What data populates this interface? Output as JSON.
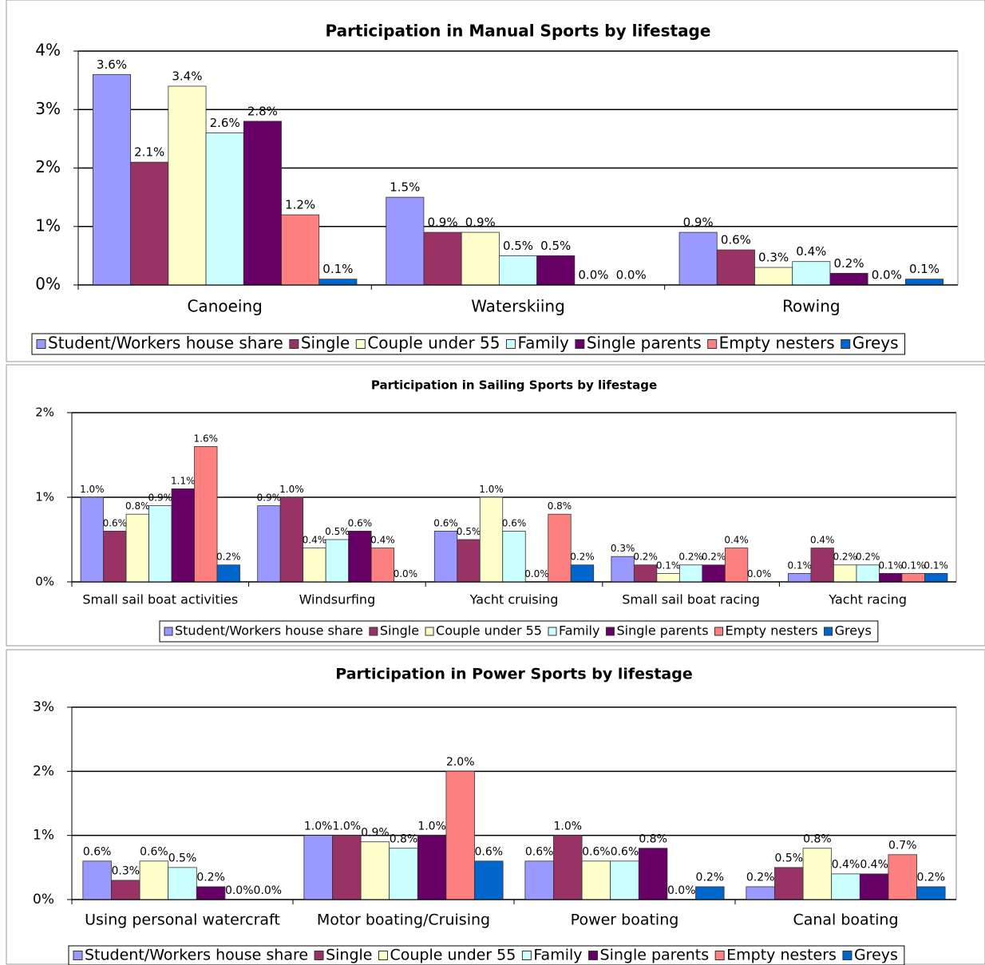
{
  "chart_data": [
    {
      "type": "bar",
      "title": "Participation in Manual Sports by lifestage",
      "categories": [
        "Canoeing",
        "Waterskiing",
        "Rowing"
      ],
      "ylim": [
        0,
        4
      ],
      "yticks": [
        {
          "value": 0,
          "label": "0%"
        },
        {
          "value": 1,
          "label": "1%"
        },
        {
          "value": 2,
          "label": "2%"
        },
        {
          "value": 3,
          "label": "3%"
        },
        {
          "value": 4,
          "label": "4%"
        }
      ],
      "grid": true,
      "legend": "bottom",
      "series": [
        {
          "name": "Student/Workers house share",
          "color": "#9999ff",
          "values": [
            3.6,
            1.5,
            0.9
          ],
          "value_labels": [
            "3.6%",
            "1.5%",
            "0.9%"
          ]
        },
        {
          "name": "Single",
          "color": "#993366",
          "values": [
            2.1,
            0.9,
            0.6
          ],
          "value_labels": [
            "2.1%",
            "0.9%",
            "0.6%"
          ]
        },
        {
          "name": "Couple under 55",
          "color": "#ffffcc",
          "values": [
            3.4,
            0.9,
            0.3
          ],
          "value_labels": [
            "3.4%",
            "0.9%",
            "0.3%"
          ]
        },
        {
          "name": "Family",
          "color": "#ccffff",
          "values": [
            2.6,
            0.5,
            0.4
          ],
          "value_labels": [
            "2.6%",
            "0.5%",
            "0.4%"
          ]
        },
        {
          "name": "Single parents",
          "color": "#660066",
          "values": [
            2.8,
            0.5,
            0.2
          ],
          "value_labels": [
            "2.8%",
            "0.5%",
            "0.2%"
          ]
        },
        {
          "name": "Empty nesters",
          "color": "#ff8080",
          "values": [
            1.2,
            0.0,
            0.0
          ],
          "value_labels": [
            "1.2%",
            "0.0%",
            "0.0%"
          ]
        },
        {
          "name": "Greys",
          "color": "#0066cc",
          "values": [
            0.1,
            0.0,
            0.1
          ],
          "value_labels": [
            "0.1%",
            "0.0%",
            "0.1%"
          ]
        }
      ]
    },
    {
      "type": "bar",
      "title": "Participation in Sailing Sports by lifestage",
      "categories": [
        "Small sail boat activities",
        "Windsurfing",
        "Yacht cruising",
        "Small sail boat racing",
        "Yacht racing"
      ],
      "ylim": [
        0,
        2
      ],
      "yticks": [
        {
          "value": 0,
          "label": "0%"
        },
        {
          "value": 1,
          "label": "1%"
        },
        {
          "value": 2,
          "label": "2%"
        }
      ],
      "grid": true,
      "legend": "bottom",
      "series": [
        {
          "name": "Student/Workers house share",
          "color": "#9999ff",
          "values": [
            1.0,
            0.9,
            0.6,
            0.3,
            0.1
          ],
          "value_labels": [
            "1.0%",
            "0.9%",
            "0.6%",
            "0.3%",
            "0.1%"
          ]
        },
        {
          "name": "Single",
          "color": "#993366",
          "values": [
            0.6,
            1.0,
            0.5,
            0.2,
            0.4
          ],
          "value_labels": [
            "0.6%",
            "1.0%",
            "0.5%",
            "0.2%",
            "0.4%"
          ]
        },
        {
          "name": "Couple under 55",
          "color": "#ffffcc",
          "values": [
            0.8,
            0.4,
            1.0,
            0.1,
            0.2
          ],
          "value_labels": [
            "0.8%",
            "0.4%",
            "1.0%",
            "0.1%",
            "0.2%"
          ]
        },
        {
          "name": "Family",
          "color": "#ccffff",
          "values": [
            0.9,
            0.5,
            0.6,
            0.2,
            0.2
          ],
          "value_labels": [
            "0.9%",
            "0.5%",
            "0.6%",
            "0.2%",
            "0.2%"
          ]
        },
        {
          "name": "Single parents",
          "color": "#660066",
          "values": [
            1.1,
            0.6,
            0.0,
            0.2,
            0.1
          ],
          "value_labels": [
            "1.1%",
            "0.6%",
            "0.0%",
            "0.2%",
            "0.1%"
          ]
        },
        {
          "name": "Empty nesters",
          "color": "#ff8080",
          "values": [
            1.6,
            0.4,
            0.8,
            0.4,
            0.1
          ],
          "value_labels": [
            "1.6%",
            "0.4%",
            "0.8%",
            "0.4%",
            "0.1%"
          ]
        },
        {
          "name": "Greys",
          "color": "#0066cc",
          "values": [
            0.2,
            0.0,
            0.2,
            0.0,
            0.1
          ],
          "value_labels": [
            "0.2%",
            "0.0%",
            "0.2%",
            "0.0%",
            "0.1%"
          ]
        }
      ]
    },
    {
      "type": "bar",
      "title": "Participation in Power Sports by lifestage",
      "categories": [
        "Using personal watercraft",
        "Motor boating/Cruising",
        "Power boating",
        "Canal boating"
      ],
      "ylim": [
        0,
        3
      ],
      "yticks": [
        {
          "value": 0,
          "label": "0%"
        },
        {
          "value": 1,
          "label": "1%"
        },
        {
          "value": 2,
          "label": "2%"
        },
        {
          "value": 3,
          "label": "3%"
        }
      ],
      "grid": true,
      "legend": "bottom",
      "series": [
        {
          "name": "Student/Workers house share",
          "color": "#9999ff",
          "values": [
            0.6,
            1.0,
            0.6,
            0.2
          ],
          "value_labels": [
            "0.6%",
            "1.0%",
            "0.6%",
            "0.2%"
          ]
        },
        {
          "name": "Single",
          "color": "#993366",
          "values": [
            0.3,
            1.0,
            1.0,
            0.5
          ],
          "value_labels": [
            "0.3%",
            "1.0%",
            "1.0%",
            "0.5%"
          ]
        },
        {
          "name": "Couple under 55",
          "color": "#ffffcc",
          "values": [
            0.6,
            0.9,
            0.6,
            0.8
          ],
          "value_labels": [
            "0.6%",
            "0.9%",
            "0.6%",
            "0.8%"
          ]
        },
        {
          "name": "Family",
          "color": "#ccffff",
          "values": [
            0.5,
            0.8,
            0.6,
            0.4
          ],
          "value_labels": [
            "0.5%",
            "0.8%",
            "0.6%",
            "0.4%"
          ]
        },
        {
          "name": "Single parents",
          "color": "#660066",
          "values": [
            0.2,
            1.0,
            0.8,
            0.4
          ],
          "value_labels": [
            "0.2%",
            "1.0%",
            "0.8%",
            "0.4%"
          ]
        },
        {
          "name": "Empty nesters",
          "color": "#ff8080",
          "values": [
            0.0,
            2.0,
            0.0,
            0.7
          ],
          "value_labels": [
            "0.0%",
            "2.0%",
            "0.0%",
            "0.7%"
          ]
        },
        {
          "name": "Greys",
          "color": "#0066cc",
          "values": [
            0.0,
            0.6,
            0.2,
            0.2
          ],
          "value_labels": [
            "0.0%",
            "0.6%",
            "0.2%",
            "0.2%"
          ]
        }
      ]
    }
  ]
}
